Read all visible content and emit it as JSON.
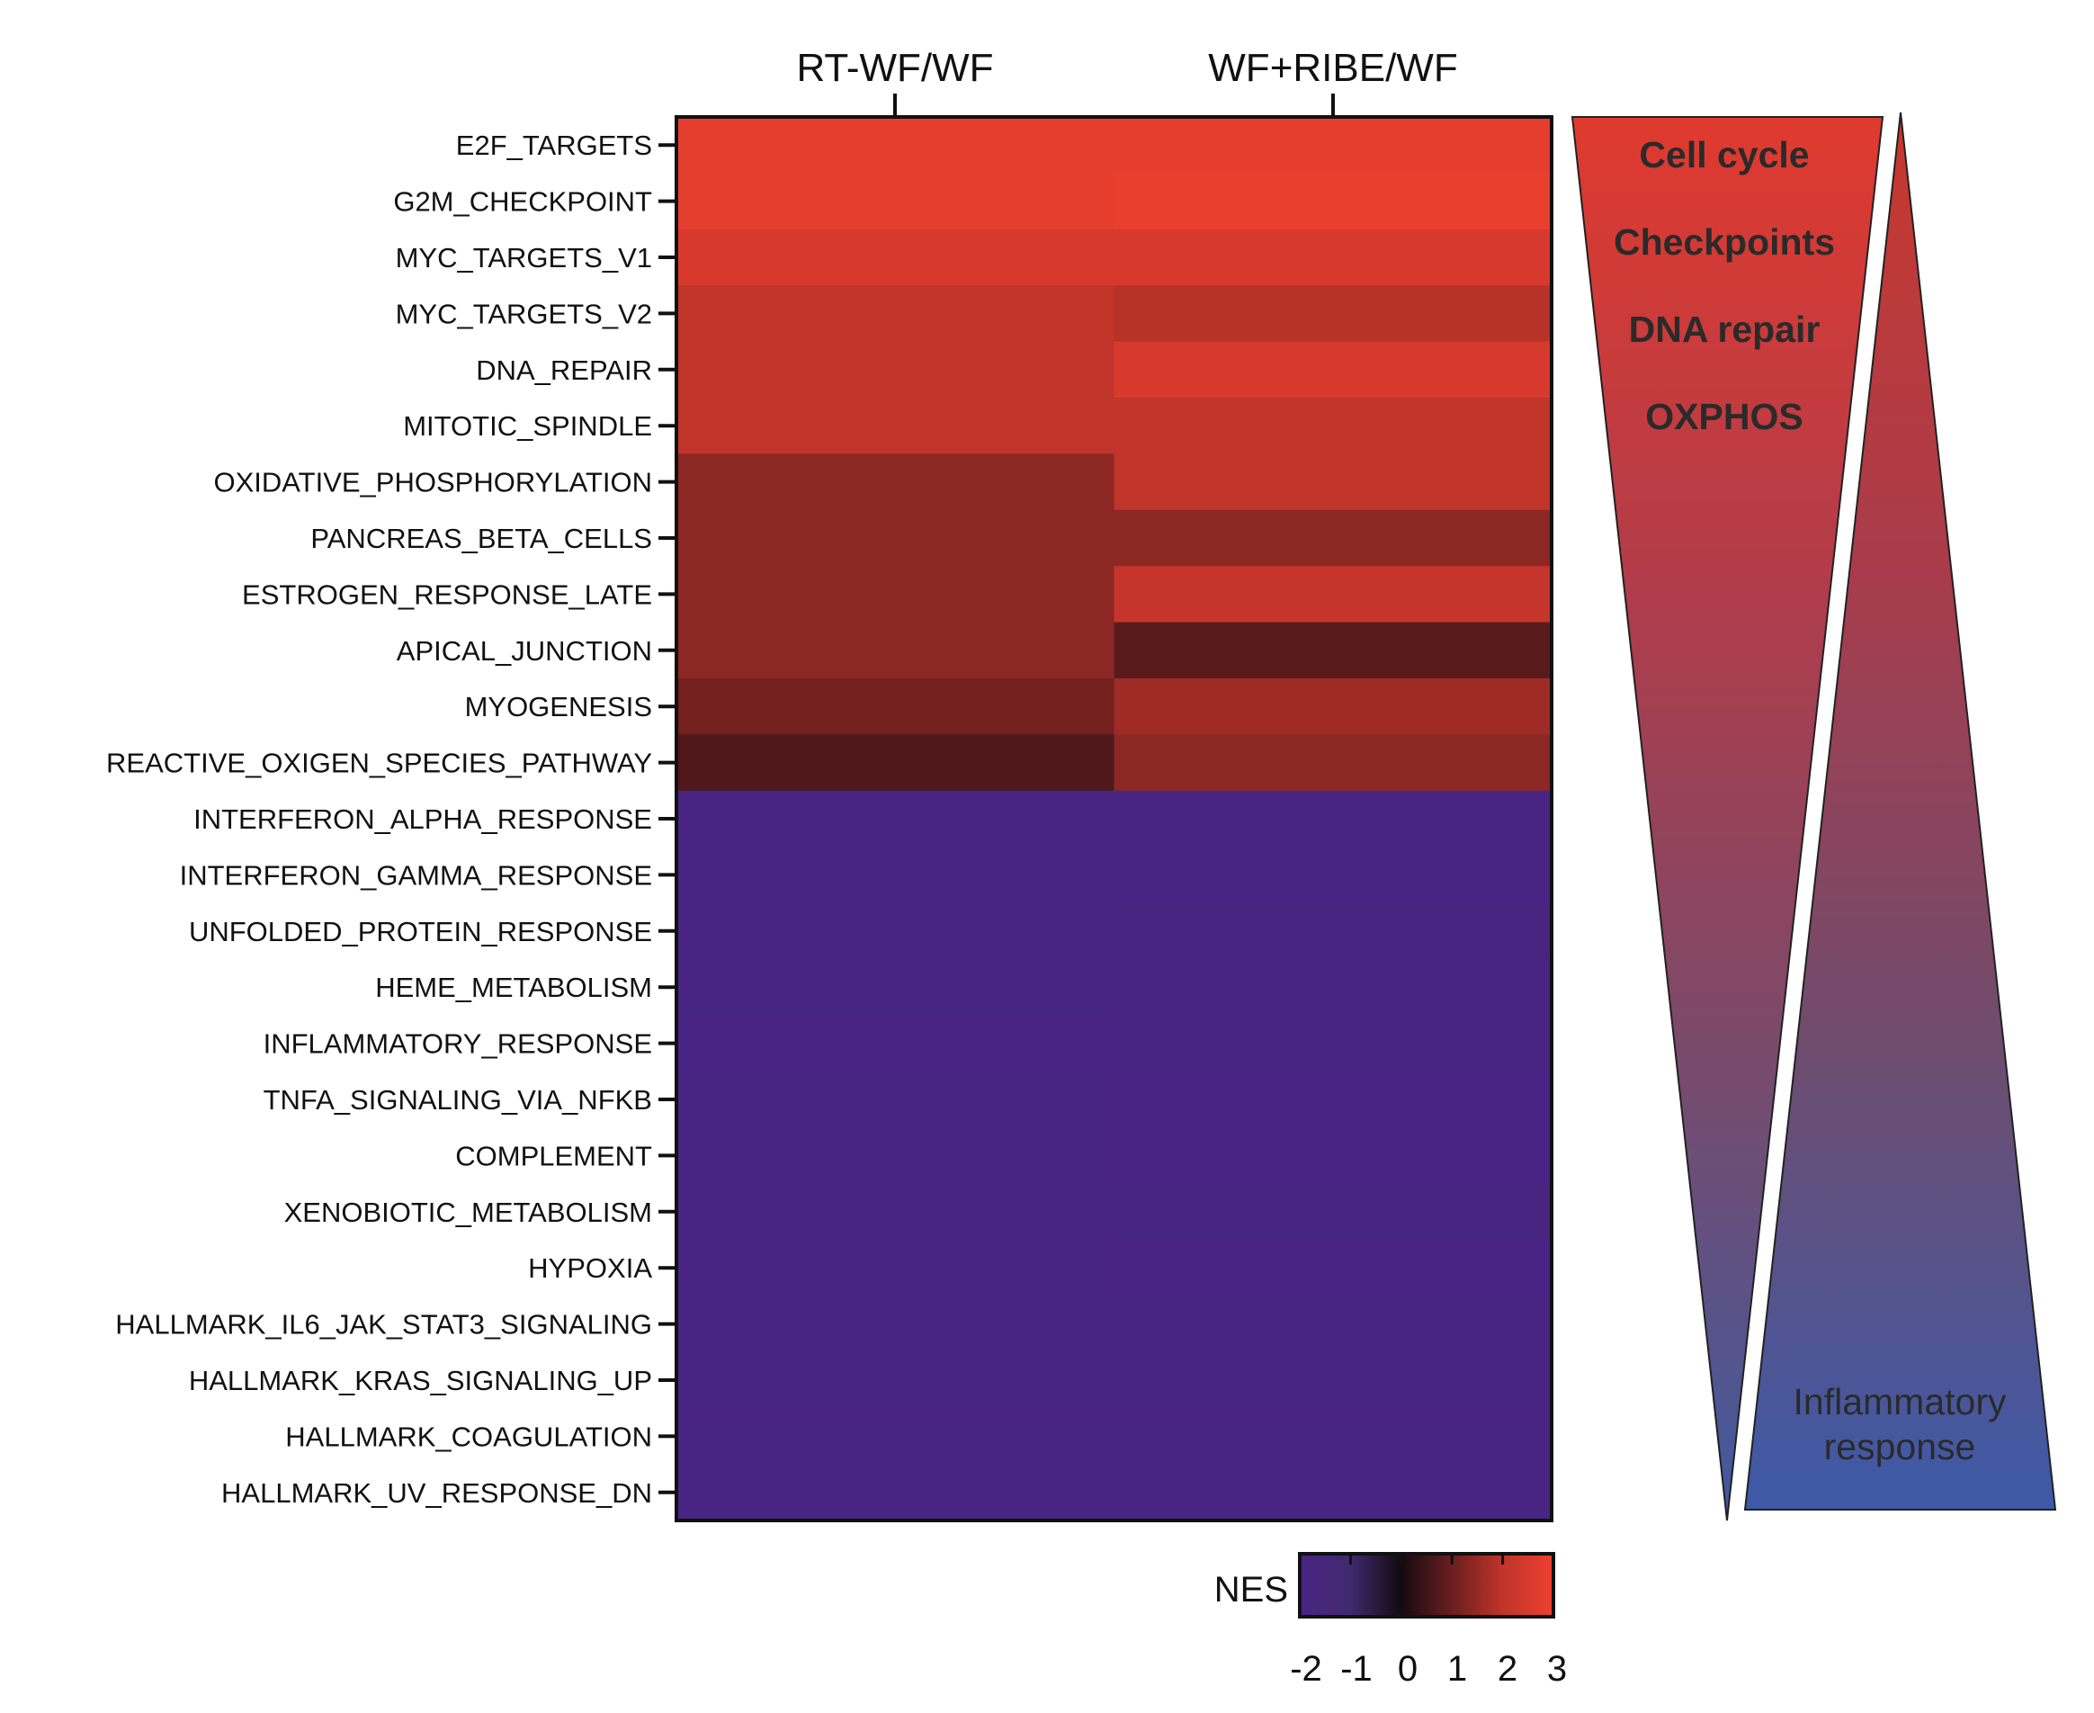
{
  "chart_data": {
    "type": "heatmap",
    "columns": [
      "RT-WF/WF",
      "WF+RIBE/WF"
    ],
    "rows": [
      "E2F_TARGETS",
      "G2M_CHECKPOINT",
      "MYC_TARGETS_V1",
      "MYC_TARGETS_V2",
      "DNA_REPAIR",
      "MITOTIC_SPINDLE",
      "OXIDATIVE_PHOSPHORYLATION",
      "PANCREAS_BETA_CELLS",
      "ESTROGEN_RESPONSE_LATE",
      "APICAL_JUNCTION",
      "MYOGENESIS",
      "REACTIVE_OXIGEN_SPECIES_PATHWAY",
      "INTERFERON_ALPHA_RESPONSE",
      "INTERFERON_GAMMA_RESPONSE",
      "UNFOLDED_PROTEIN_RESPONSE",
      "HEME_METABOLISM",
      "INFLAMMATORY_RESPONSE",
      "TNFA_SIGNALING_VIA_NFKB",
      "COMPLEMENT",
      "XENOBIOTIC_METABOLISM",
      "HYPOXIA",
      "HALLMARK_IL6_JAK_STAT3_SIGNALING",
      "HALLMARK_KRAS_SIGNALING_UP",
      "HALLMARK_COAGULATION",
      "HALLMARK_UV_RESPONSE_DN"
    ],
    "values": [
      [
        2.8,
        2.8
      ],
      [
        2.8,
        2.9
      ],
      [
        2.5,
        2.5
      ],
      [
        2.0,
        1.9
      ],
      [
        2.0,
        2.5
      ],
      [
        2.0,
        2.0
      ],
      [
        1.4,
        2.0
      ],
      [
        1.4,
        1.4
      ],
      [
        1.4,
        2.1
      ],
      [
        1.4,
        0.8
      ],
      [
        1.1,
        1.6
      ],
      [
        0.7,
        1.4
      ],
      [
        -1.9,
        -1.9
      ],
      [
        -1.9,
        -1.9
      ],
      [
        -1.9,
        -1.8
      ],
      [
        -1.9,
        -1.9
      ],
      [
        -2.0,
        -1.9
      ],
      [
        -1.9,
        -2.0
      ],
      [
        -1.9,
        -2.0
      ],
      [
        -1.9,
        -1.8
      ],
      [
        -1.9,
        -2.0
      ],
      [
        -1.9,
        -1.9
      ],
      [
        -1.9,
        -1.9
      ],
      [
        -1.9,
        -1.9
      ],
      [
        -1.9,
        -1.9
      ]
    ],
    "colorbar": {
      "label": "NES",
      "ticks": [
        "-2",
        "-1",
        "0",
        "1",
        "2",
        "3"
      ],
      "range": [
        -2,
        3
      ],
      "colors": [
        "#4a2485",
        "#402a6e",
        "#140a10",
        "#6a1e1e",
        "#c0342a",
        "#ee4030"
      ]
    }
  },
  "annotations": {
    "down_triangle": {
      "lines": [
        "Cell cycle",
        "Checkpoints",
        "DNA repair",
        "OXPHOS"
      ],
      "color_top": "#e03a2e",
      "color_bottom": "#3f5aa0"
    },
    "up_triangle": {
      "lines": [
        "Inflammatory",
        "response"
      ],
      "color_top": "#c8382e",
      "color_bottom": "#3d5aa8"
    }
  }
}
